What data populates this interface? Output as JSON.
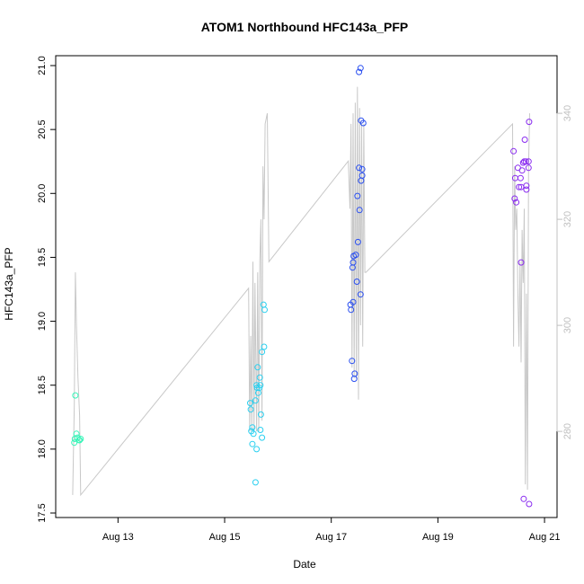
{
  "chart_data": {
    "type": "scatter",
    "title": "ATOM1 Northbound HFC143a_PFP",
    "xlabel": "Date",
    "ylabel": "HFC143a_PFP",
    "xlim": [
      12.0,
      21.1
    ],
    "ylim": [
      17.5,
      21.0
    ],
    "x_ticks": [
      13,
      15,
      17,
      19,
      21
    ],
    "x_tick_labels": [
      "Aug 13",
      "Aug 15",
      "Aug 17",
      "Aug 19",
      "Aug 21"
    ],
    "y_ticks": [
      17.5,
      18.0,
      18.5,
      19.0,
      19.5,
      20.0,
      20.5,
      21.0
    ],
    "y_tick_labels": [
      "17.5",
      "18.0",
      "18.5",
      "19.0",
      "19.5",
      "20.0",
      "20.5",
      "21.0"
    ],
    "y2_ticks": [
      280,
      300,
      320,
      340
    ],
    "y2_tick_labels": [
      "280",
      "300",
      "320",
      "340"
    ],
    "y2lim": [
      264.6,
      349.0
    ],
    "grid": false,
    "series": [
      {
        "color": "#37f5b8",
        "points": [
          [
            12.2,
            18.42
          ],
          [
            12.18,
            18.05
          ],
          [
            12.19,
            18.08
          ],
          [
            12.22,
            18.12
          ],
          [
            12.24,
            18.09
          ],
          [
            12.27,
            18.07
          ],
          [
            12.28,
            18.07
          ],
          [
            12.3,
            18.08
          ]
        ]
      },
      {
        "color": "#2ad0f0",
        "points": [
          [
            15.48,
            18.36
          ],
          [
            15.49,
            18.31
          ],
          [
            15.5,
            18.14
          ],
          [
            15.52,
            18.17
          ],
          [
            15.54,
            18.12
          ],
          [
            15.52,
            18.04
          ],
          [
            15.58,
            18.38
          ],
          [
            15.6,
            18.5
          ],
          [
            15.61,
            18.48
          ],
          [
            15.63,
            18.44
          ],
          [
            15.65,
            18.48
          ],
          [
            15.67,
            18.5
          ],
          [
            15.66,
            18.56
          ],
          [
            15.62,
            18.64
          ],
          [
            15.58,
            17.74
          ],
          [
            15.6,
            18.0
          ],
          [
            15.68,
            18.27
          ],
          [
            15.7,
            18.09
          ],
          [
            15.67,
            18.15
          ],
          [
            15.7,
            18.76
          ],
          [
            15.74,
            18.8
          ],
          [
            15.73,
            19.13
          ],
          [
            15.75,
            19.09
          ]
        ]
      },
      {
        "color": "#2a4ff0",
        "points": [
          [
            17.36,
            19.13
          ],
          [
            17.37,
            19.09
          ],
          [
            17.41,
            19.15
          ],
          [
            17.4,
            19.42
          ],
          [
            17.41,
            19.46
          ],
          [
            17.42,
            19.51
          ],
          [
            17.46,
            19.52
          ],
          [
            17.48,
            19.31
          ],
          [
            17.5,
            19.62
          ],
          [
            17.49,
            19.98
          ],
          [
            17.52,
            20.2
          ],
          [
            17.53,
            19.87
          ],
          [
            17.56,
            20.1
          ],
          [
            17.58,
            20.14
          ],
          [
            17.58,
            20.19
          ],
          [
            17.55,
            19.21
          ],
          [
            17.56,
            20.57
          ],
          [
            17.6,
            20.55
          ],
          [
            17.52,
            20.95
          ],
          [
            17.55,
            20.98
          ],
          [
            17.39,
            18.69
          ],
          [
            17.43,
            18.55
          ],
          [
            17.44,
            18.59
          ]
        ]
      },
      {
        "color": "#8a2cf0",
        "points": [
          [
            20.42,
            20.33
          ],
          [
            20.45,
            20.12
          ],
          [
            20.44,
            19.96
          ],
          [
            20.47,
            19.93
          ],
          [
            20.5,
            20.2
          ],
          [
            20.52,
            20.05
          ],
          [
            20.55,
            20.12
          ],
          [
            20.58,
            20.18
          ],
          [
            20.6,
            20.24
          ],
          [
            20.62,
            20.25
          ],
          [
            20.65,
            20.25
          ],
          [
            20.66,
            20.06
          ],
          [
            20.66,
            20.03
          ],
          [
            20.63,
            20.42
          ],
          [
            20.56,
            20.05
          ],
          [
            20.7,
            20.25
          ],
          [
            20.7,
            20.2
          ],
          [
            20.71,
            20.56
          ],
          [
            20.56,
            19.46
          ],
          [
            20.61,
            17.61
          ],
          [
            20.71,
            17.57
          ]
        ]
      }
    ],
    "line": {
      "color": "#c8c8c8",
      "axis": "right",
      "points": [
        [
          12.15,
          268
        ],
        [
          12.18,
          285
        ],
        [
          12.2,
          310
        ],
        [
          12.22,
          300
        ],
        [
          12.25,
          290
        ],
        [
          12.28,
          283
        ],
        [
          12.3,
          268
        ],
        [
          15.45,
          307
        ],
        [
          15.47,
          280
        ],
        [
          15.49,
          298
        ],
        [
          15.51,
          280
        ],
        [
          15.53,
          312
        ],
        [
          15.55,
          280
        ],
        [
          15.57,
          308
        ],
        [
          15.6,
          280
        ],
        [
          15.62,
          310
        ],
        [
          15.64,
          280
        ],
        [
          15.66,
          312
        ],
        [
          15.68,
          320
        ],
        [
          15.7,
          282
        ],
        [
          15.72,
          330
        ],
        [
          15.74,
          320
        ],
        [
          15.76,
          338
        ],
        [
          15.8,
          340
        ],
        [
          15.83,
          312
        ],
        [
          17.32,
          331
        ],
        [
          17.35,
          322
        ],
        [
          17.37,
          338
        ],
        [
          17.39,
          292
        ],
        [
          17.41,
          340
        ],
        [
          17.43,
          290
        ],
        [
          17.45,
          342
        ],
        [
          17.47,
          290
        ],
        [
          17.49,
          345
        ],
        [
          17.51,
          286
        ],
        [
          17.53,
          341
        ],
        [
          17.55,
          300
        ],
        [
          17.57,
          338
        ],
        [
          17.59,
          296
        ],
        [
          17.61,
          338
        ],
        [
          17.63,
          310
        ],
        [
          17.65,
          310
        ],
        [
          20.4,
          338
        ],
        [
          20.42,
          296
        ],
        [
          20.44,
          330
        ],
        [
          20.46,
          318
        ],
        [
          20.48,
          322
        ],
        [
          20.5,
          306
        ],
        [
          20.52,
          296
        ],
        [
          20.54,
          312
        ],
        [
          20.56,
          293
        ],
        [
          20.58,
          318
        ],
        [
          20.6,
          308
        ],
        [
          20.62,
          322
        ],
        [
          20.64,
          270
        ],
        [
          20.66,
          306
        ],
        [
          20.68,
          269
        ],
        [
          20.7,
          330
        ],
        [
          20.72,
          340
        ]
      ]
    }
  }
}
